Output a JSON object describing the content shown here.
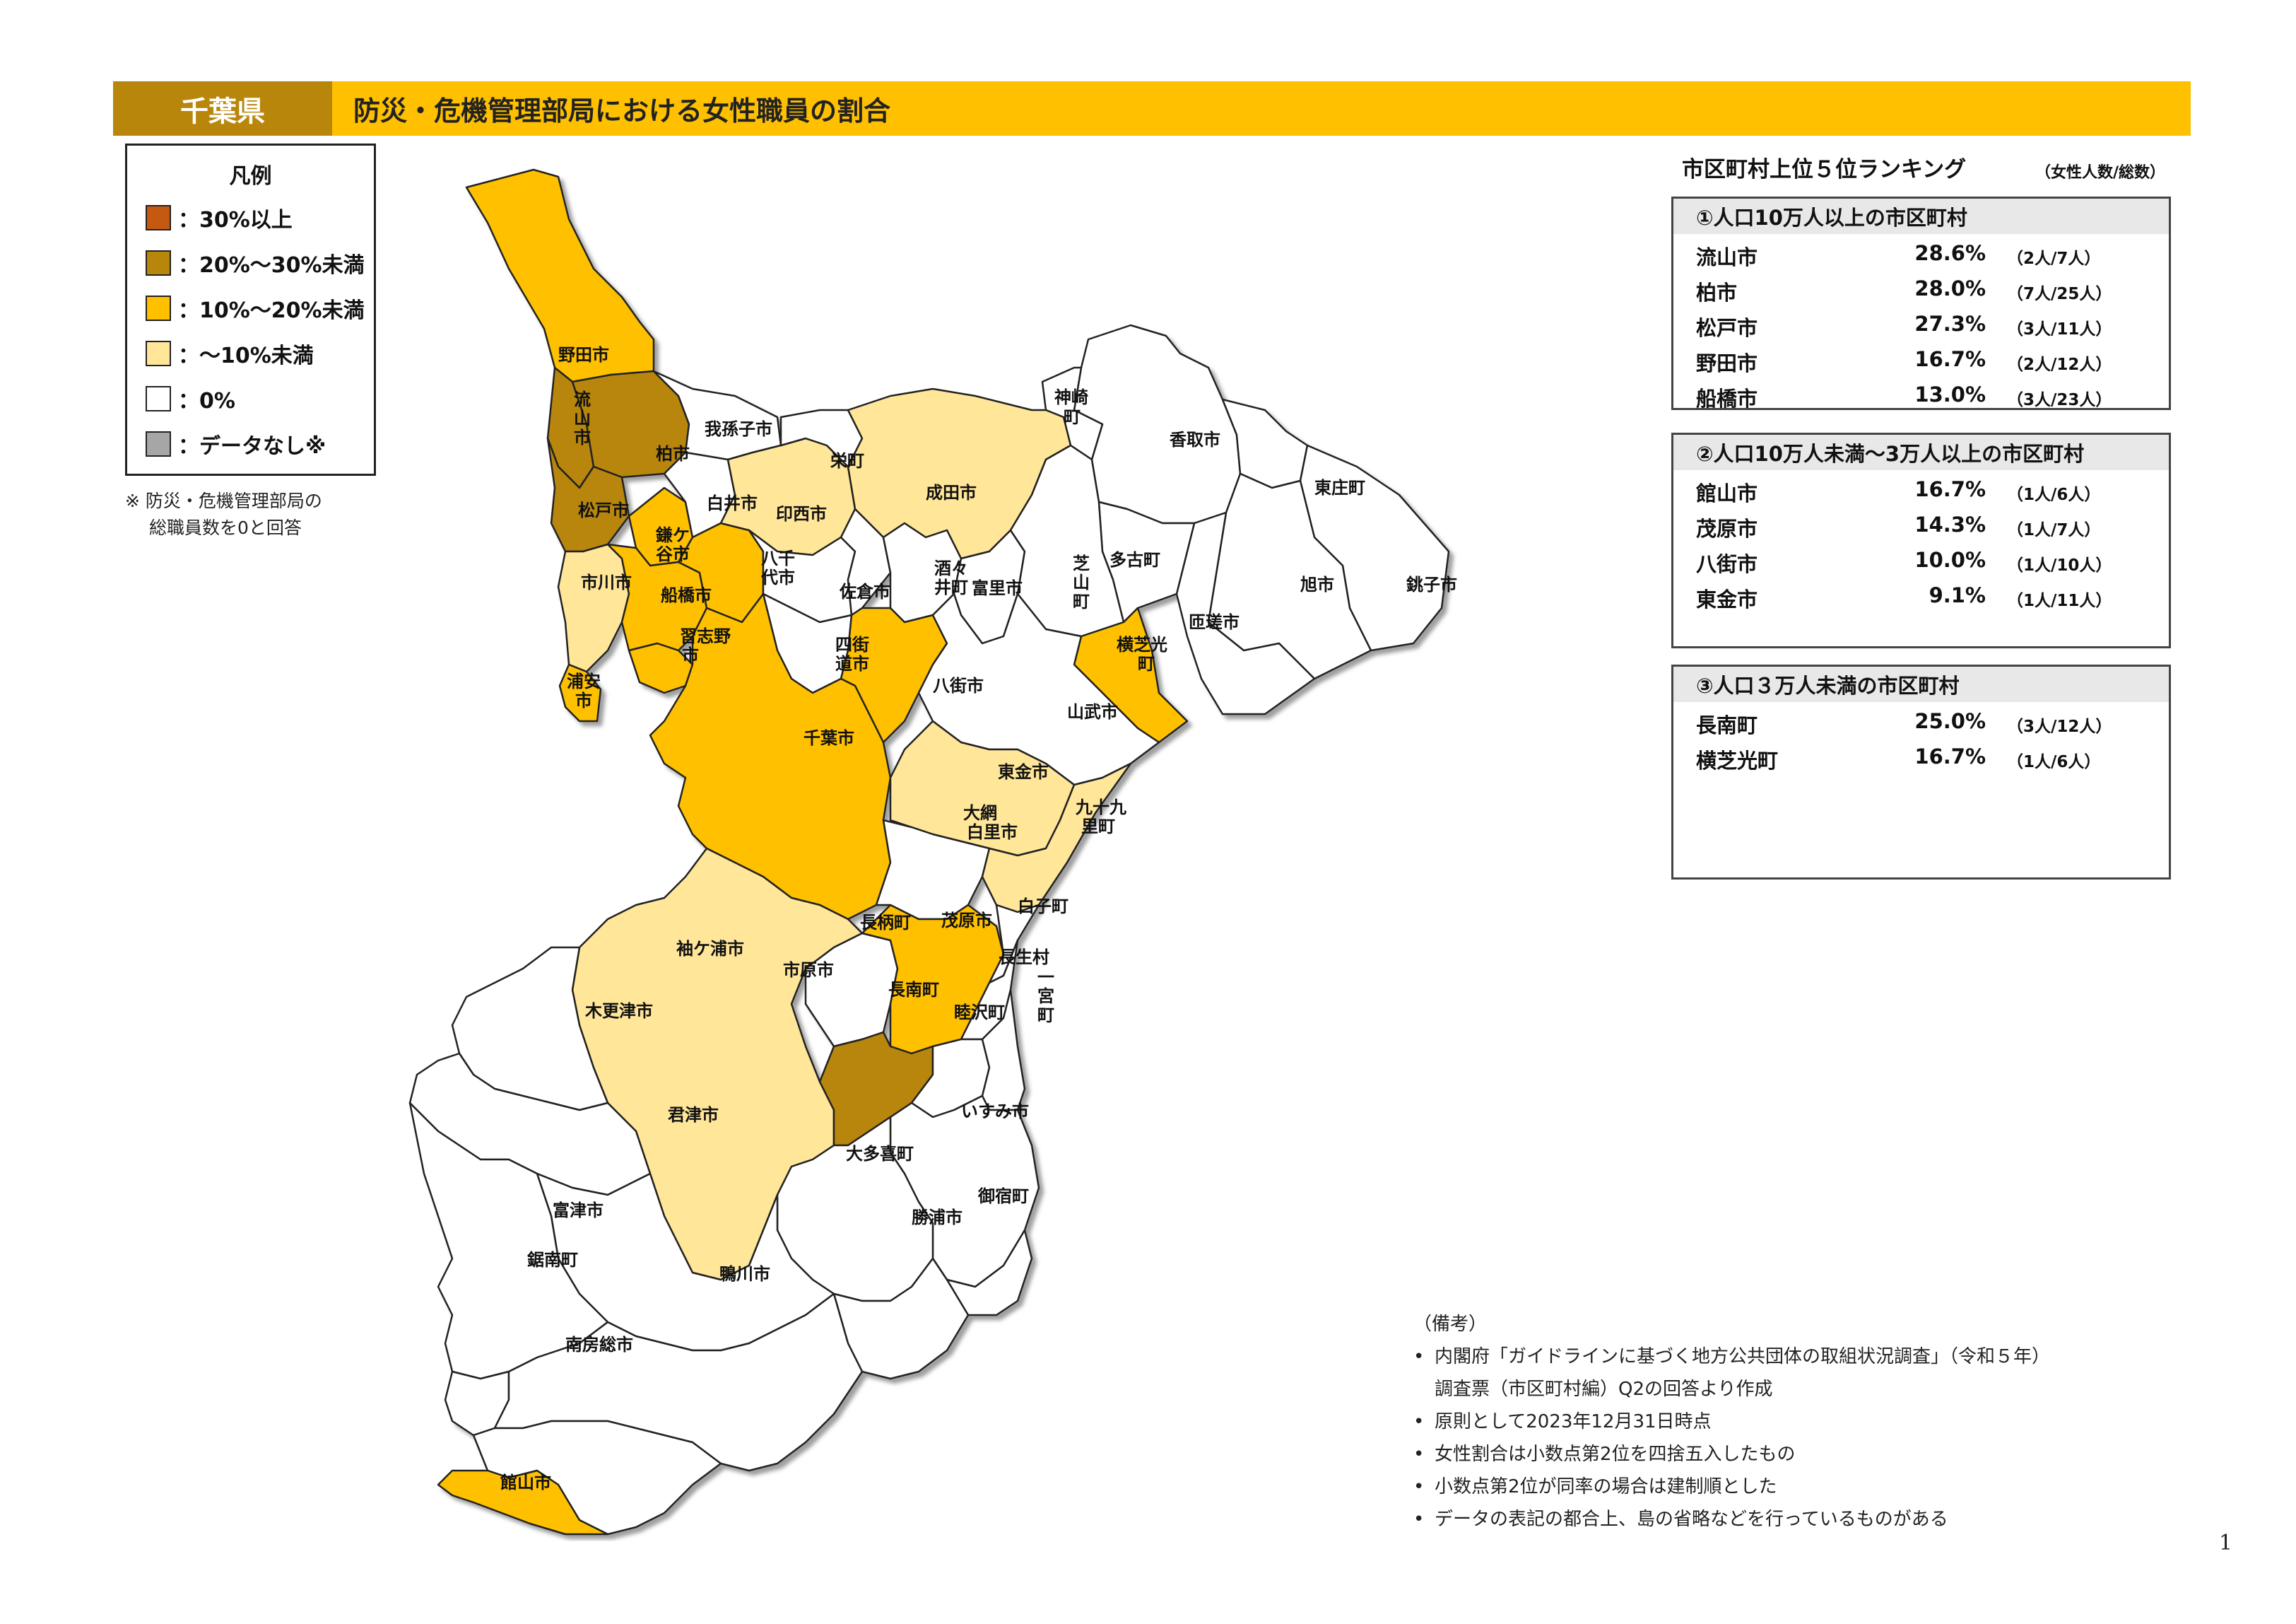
{
  "header": {
    "prefecture": "千葉県",
    "title": "防災・危機管理部局における女性職員の割合"
  },
  "colors": {
    "header_bar": "#FFC000",
    "header_pref_bg": "#B8860B",
    "c30": "#C65911",
    "c20_30": "#B8860B",
    "c10_20": "#FFC000",
    "c0_10": "#FFE699",
    "c0": "#FFFFFF",
    "cna": "#A6A6A6"
  },
  "legend": {
    "title": "凡例",
    "items": [
      {
        "label": "：30%以上",
        "color": "#C65911"
      },
      {
        "label": "：20%～30%未満",
        "color": "#B8860B"
      },
      {
        "label": "：10%～20%未満",
        "color": "#FFC000"
      },
      {
        "label": "：～10%未満",
        "color": "#FFE699"
      },
      {
        "label": "：0%",
        "color": "#FFFFFF"
      },
      {
        "label": "：データなし※",
        "color": "#A6A6A6"
      }
    ],
    "note_line1": "※ 防災・危機管理部局の",
    "note_line2": "総職員数を0と回答"
  },
  "map": {
    "municipalities": [
      {
        "name": "野田市",
        "category": "10-20"
      },
      {
        "name": "流山市",
        "category": "20-30"
      },
      {
        "name": "柏市",
        "category": "20-30"
      },
      {
        "name": "我孫子市",
        "category": "0"
      },
      {
        "name": "松戸市",
        "category": "20-30"
      },
      {
        "name": "鎌ケ谷市",
        "category": "10-20"
      },
      {
        "name": "白井市",
        "category": "0"
      },
      {
        "name": "印西市",
        "category": "0-10"
      },
      {
        "name": "栄町",
        "category": "0"
      },
      {
        "name": "成田市",
        "category": "0-10"
      },
      {
        "name": "神崎町",
        "category": "0"
      },
      {
        "name": "香取市",
        "category": "0"
      },
      {
        "name": "東庄町",
        "category": "0"
      },
      {
        "name": "旭市",
        "category": "0"
      },
      {
        "name": "銚子市",
        "category": "0"
      },
      {
        "name": "市川市",
        "category": "0-10"
      },
      {
        "name": "船橋市",
        "category": "10-20"
      },
      {
        "name": "八千代市",
        "category": "10-20"
      },
      {
        "name": "佐倉市",
        "category": "0"
      },
      {
        "name": "酒々井町",
        "category": "0"
      },
      {
        "name": "富里市",
        "category": "0"
      },
      {
        "name": "芝山町",
        "category": "0"
      },
      {
        "name": "多古町",
        "category": "0"
      },
      {
        "name": "匝瑳市",
        "category": "0"
      },
      {
        "name": "横芝光町",
        "category": "10-20"
      },
      {
        "name": "浦安市",
        "category": "10-20"
      },
      {
        "name": "習志野市",
        "category": "10-20"
      },
      {
        "name": "四街道市",
        "category": "0"
      },
      {
        "name": "八街市",
        "category": "10-20"
      },
      {
        "name": "山武市",
        "category": "0"
      },
      {
        "name": "千葉市",
        "category": "10-20"
      },
      {
        "name": "東金市",
        "category": "0-10"
      },
      {
        "name": "大網白里市",
        "category": "0"
      },
      {
        "name": "九十九里町",
        "category": "0-10"
      },
      {
        "name": "長柄町",
        "category": "0"
      },
      {
        "name": "茂原市",
        "category": "10-20"
      },
      {
        "name": "白子町",
        "category": "0"
      },
      {
        "name": "長生村",
        "category": "0"
      },
      {
        "name": "袖ケ浦市",
        "category": "0"
      },
      {
        "name": "市原市",
        "category": "0-10"
      },
      {
        "name": "長南町",
        "category": "20-30"
      },
      {
        "name": "睦沢町",
        "category": "0"
      },
      {
        "name": "一宮町",
        "category": "0"
      },
      {
        "name": "木更津市",
        "category": "0"
      },
      {
        "name": "君津市",
        "category": "0"
      },
      {
        "name": "いすみ市",
        "category": "0"
      },
      {
        "name": "大多喜町",
        "category": "0"
      },
      {
        "name": "御宿町",
        "category": "0"
      },
      {
        "name": "勝浦市",
        "category": "0"
      },
      {
        "name": "富津市",
        "category": "0"
      },
      {
        "name": "鋸南町",
        "category": "0"
      },
      {
        "name": "鴨川市",
        "category": "0"
      },
      {
        "name": "南房総市",
        "category": "0"
      },
      {
        "name": "館山市",
        "category": "10-20"
      }
    ],
    "labels": {
      "noda": "野田市",
      "nagare1": "流",
      "nagare2": "山",
      "nagare3": "市",
      "kashiwa": "柏市",
      "abiko": "我孫子市",
      "matsudo": "松戸市",
      "kama1": "鎌ケ",
      "kama2": "谷市",
      "shiroi": "白井市",
      "inzai": "印西市",
      "sakae": "栄町",
      "narita": "成田市",
      "kozaki1": "神崎",
      "kozaki2": "町",
      "katori": "香取市",
      "tonosho": "東庄町",
      "asahi": "旭市",
      "choshi": "銚子市",
      "ichikawa": "市川市",
      "funabashi": "船橋市",
      "yachi1": "八千",
      "yachi2": "代市",
      "sakura": "佐倉市",
      "shisui1": "酒々",
      "shisui2": "井町",
      "tomisato": "富里市",
      "shiba1": "芝",
      "shiba2": "山",
      "shiba3": "町",
      "tako": "多古町",
      "sosa": "匝瑳市",
      "yoko1": "横芝光",
      "yoko2": "町",
      "ura1": "浦安",
      "ura2": "市",
      "nara1": "習志野",
      "nara2": "市",
      "yotsu1": "四街",
      "yotsu2": "道市",
      "yachimata": "八街市",
      "sammu": "山武市",
      "chiba": "千葉市",
      "togane": "東金市",
      "oami1": "大網",
      "oami2": "白里市",
      "kuju1": "九十九",
      "kuju2": "里町",
      "nagara": "長柄町",
      "mobara": "茂原市",
      "shirako": "白子町",
      "chosei": "長生村",
      "sode": "袖ケ浦市",
      "ichihara": "市原市",
      "chonan": "長南町",
      "mutsu": "睦沢町",
      "ichi1": "一",
      "ichi2": "宮",
      "ichi3": "町",
      "kisara": "木更津市",
      "kimitsu": "君津市",
      "isumi": "いすみ市",
      "otaki": "大多喜町",
      "onjuku": "御宿町",
      "katsura": "勝浦市",
      "futtsu": "富津市",
      "kyonan": "鋸南町",
      "kamo": "鴨川市",
      "minami": "南房総市",
      "tateyama": "館山市"
    }
  },
  "ranking": {
    "title": "市区町村上位５位ランキング",
    "unit": "（女性人数/総数）",
    "groups": [
      {
        "heading": "①人口10万人以上の市区町村",
        "rows": [
          {
            "name": "流山市",
            "pct": "28.6%",
            "count": "（2人/7人）"
          },
          {
            "name": "柏市",
            "pct": "28.0%",
            "count": "（7人/25人）"
          },
          {
            "name": "松戸市",
            "pct": "27.3%",
            "count": "（3人/11人）"
          },
          {
            "name": "野田市",
            "pct": "16.7%",
            "count": "（2人/12人）"
          },
          {
            "name": "船橋市",
            "pct": "13.0%",
            "count": "（3人/23人）"
          }
        ]
      },
      {
        "heading": "②人口10万人未満～3万人以上の市区町村",
        "rows": [
          {
            "name": "館山市",
            "pct": "16.7%",
            "count": "（1人/6人）"
          },
          {
            "name": "茂原市",
            "pct": "14.3%",
            "count": "（1人/7人）"
          },
          {
            "name": "八街市",
            "pct": "10.0%",
            "count": "（1人/10人）"
          },
          {
            "name": "東金市",
            "pct": "9.1%",
            "count": "（1人/11人）"
          }
        ]
      },
      {
        "heading": "③人口３万人未満の市区町村",
        "rows": [
          {
            "name": "長南町",
            "pct": "25.0%",
            "count": "（3人/12人）"
          },
          {
            "name": "横芝光町",
            "pct": "16.7%",
            "count": "（1人/6人）"
          }
        ]
      }
    ]
  },
  "notes": {
    "heading": "（備考）",
    "item1a": "内閣府「ガイドラインに基づく地方公共団体の取組状況調査」（令和５年）",
    "item1b": "調査票（市区町村編）Q2の回答より作成",
    "item2": "原則として2023年12月31日時点",
    "item3": "女性割合は小数点第2位を四捨五入したもの",
    "item4": "小数点第2位が同率の場合は建制順とした",
    "item5": "データの表記の都合上、島の省略などを行っているものがある"
  },
  "page_number": "1"
}
